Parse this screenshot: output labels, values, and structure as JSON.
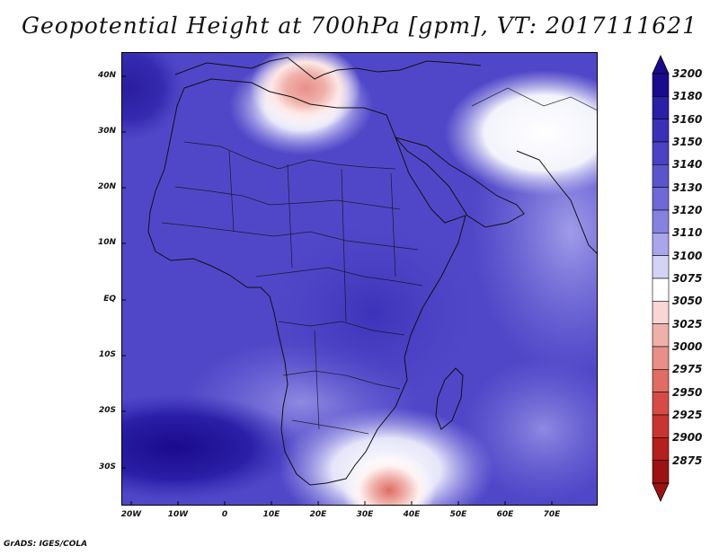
{
  "title": "Geopotential Height at 700hPa [gpm], VT: 2017111621",
  "footer": "GrADS: IGES/COLA",
  "lat_labels": [
    "40N",
    "30N",
    "20N",
    "10N",
    "EQ",
    "10S",
    "20S",
    "30S"
  ],
  "lon_labels": [
    "20W",
    "10W",
    "0",
    "10E",
    "20E",
    "30E",
    "40E",
    "50E",
    "60E",
    "70E"
  ],
  "colorbar": {
    "levels": [
      "3200",
      "3180",
      "3160",
      "3150",
      "3140",
      "3130",
      "3120",
      "3110",
      "3100",
      "3075",
      "3050",
      "3025",
      "3000",
      "2975",
      "2950",
      "2925",
      "2900",
      "2875"
    ],
    "colors": [
      "#1a0b8c",
      "#2a1fa6",
      "#3a30b8",
      "#4a41c4",
      "#5b55cc",
      "#6e69d6",
      "#8582e0",
      "#a9a6ec",
      "#d4d3f6",
      "#ffffff",
      "#f7d6d3",
      "#f0b0aa",
      "#e88f87",
      "#e06c64",
      "#d84b44",
      "#c83430",
      "#b51f1d",
      "#9c1212"
    ]
  },
  "legend_colors": {
    "deep_blue": "#2a1fa6",
    "mid_blue": "#4a41c4",
    "light_blue": "#8582e0",
    "white": "#ffffff",
    "red": "#d84b44"
  }
}
